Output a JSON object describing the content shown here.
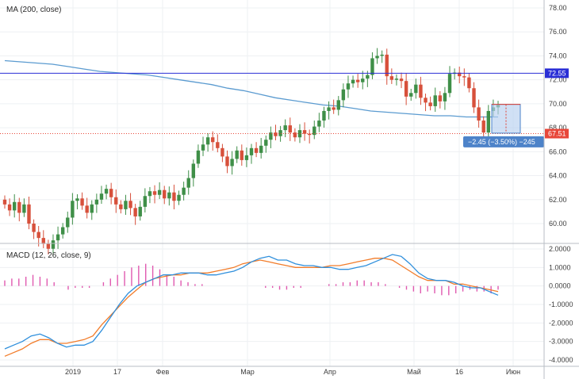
{
  "price_panel": {
    "indicator_label": "MA (200, close)",
    "y_ticks": [
      "78.00",
      "76.00",
      "74.00",
      "72.00",
      "70.00",
      "68.00",
      "66.00",
      "64.00",
      "62.00",
      "60.00"
    ],
    "level_blue": {
      "value": 72.55,
      "label": "72.55",
      "color": "#2a2fd6"
    },
    "level_red": {
      "value": 67.51,
      "label": "67.51",
      "color": "#e8473a"
    },
    "measure": {
      "label": "−2.45 (−3.50%) −245",
      "color": "#4d83c9"
    }
  },
  "macd_panel": {
    "indicator_label": "MACD (12, 26, close, 9)",
    "y_ticks": [
      "2.0000",
      "1.0000",
      "0.0000",
      "-1.0000",
      "-2.0000",
      "-3.0000",
      "-4.0000"
    ]
  },
  "x_axis": {
    "labels": [
      "2019",
      "17",
      "Фев",
      "Мар",
      "Апр",
      "Май",
      "16",
      "Июн"
    ]
  },
  "colors": {
    "up": "#3f8f48",
    "down": "#d7503b",
    "ma": "#5b9bd0",
    "macd": "#2f8fdc",
    "signal": "#f27c2a",
    "hist": "#e05ab0"
  },
  "chart_data": [
    {
      "type": "candlestick",
      "title": "",
      "close_approx": [
        61.6,
        61.1,
        61.8,
        60.9,
        61.6,
        60.0,
        59.3,
        58.8,
        58.3,
        57.9,
        58.6,
        59.1,
        59.7,
        60.5,
        61.9,
        62.1,
        61.5,
        60.9,
        61.6,
        62.0,
        62.5,
        62.9,
        62.2,
        61.6,
        61.2,
        61.9,
        61.3,
        60.6,
        61.4,
        62.3,
        62.7,
        62.4,
        62.8,
        62.1,
        62.6,
        61.9,
        62.4,
        63.0,
        63.8,
        65.0,
        66.1,
        66.6,
        67.2,
        66.8,
        66.3,
        65.6,
        64.8,
        65.4,
        66.1,
        65.3,
        65.7,
        66.3,
        65.9,
        66.5,
        67.0,
        67.6,
        67.3,
        67.8,
        68.2,
        67.6,
        67.2,
        67.8,
        67.5,
        67.4,
        68.1,
        68.6,
        69.4,
        69.7,
        69.5,
        70.3,
        71.2,
        71.7,
        72.0,
        71.8,
        72.1,
        72.4,
        73.8,
        74.0,
        74.1,
        72.3,
        72.0,
        72.1,
        71.9,
        70.6,
        70.9,
        71.6,
        70.5,
        70.1,
        69.8,
        70.7,
        70.2,
        70.9,
        72.5,
        72.6,
        72.3,
        72.2,
        71.3,
        69.7,
        68.6,
        67.6,
        69.4,
        69.7,
        69.9
      ],
      "ma200_approx": [
        73.6,
        73.5,
        73.4,
        73.3,
        73.1,
        72.9,
        72.7,
        72.6,
        72.5,
        72.4,
        72.2,
        72.0,
        71.8,
        71.6,
        71.3,
        71.1,
        70.8,
        70.5,
        70.3,
        70.1,
        69.9,
        69.8,
        69.6,
        69.4,
        69.3,
        69.2,
        69.1,
        69.0,
        69.0,
        68.9,
        68.9,
        68.9
      ],
      "series": [
        {
          "name": "MA (200, close)"
        }
      ],
      "ylim": [
        59,
        78.6
      ],
      "grid": true,
      "lines": [
        72.55,
        67.51
      ]
    },
    {
      "type": "line",
      "title": "MACD (12, 26, close, 9)",
      "macd_approx": [
        -3.4,
        -3.2,
        -3.0,
        -2.7,
        -2.6,
        -2.8,
        -3.1,
        -3.3,
        -3.2,
        -3.2,
        -3.0,
        -2.4,
        -1.7,
        -1.0,
        -0.4,
        0.0,
        0.2,
        0.4,
        0.6,
        0.6,
        0.7,
        0.7,
        0.7,
        0.6,
        0.6,
        0.7,
        0.8,
        1.0,
        1.3,
        1.5,
        1.6,
        1.4,
        1.4,
        1.2,
        1.1,
        1.1,
        1.0,
        1.0,
        0.9,
        0.9,
        1.0,
        1.1,
        1.3,
        1.5,
        1.7,
        1.6,
        1.2,
        0.7,
        0.4,
        0.3,
        0.3,
        0.2,
        0.0,
        -0.1,
        -0.1,
        -0.3,
        -0.5
      ],
      "signal_approx": [
        -3.8,
        -3.6,
        -3.4,
        -3.1,
        -2.9,
        -2.9,
        -3.1,
        -3.1,
        -3.0,
        -2.9,
        -2.7,
        -2.1,
        -1.6,
        -1.1,
        -0.6,
        -0.2,
        0.2,
        0.4,
        0.5,
        0.6,
        0.6,
        0.7,
        0.7,
        0.7,
        0.8,
        0.9,
        1.0,
        1.2,
        1.3,
        1.4,
        1.3,
        1.2,
        1.1,
        1.0,
        1.0,
        1.0,
        1.0,
        1.1,
        1.1,
        1.2,
        1.3,
        1.4,
        1.5,
        1.5,
        1.4,
        1.1,
        0.8,
        0.5,
        0.3,
        0.3,
        0.3,
        0.1,
        0.1,
        0.0,
        -0.1,
        -0.2,
        -0.3
      ],
      "hist_approx": [
        0.3,
        0.4,
        0.4,
        0.5,
        0.6,
        0.5,
        0.4,
        0.2,
        0.0,
        -0.2,
        -0.1,
        -0.1,
        -0.1,
        0.0,
        0.2,
        0.4,
        0.6,
        0.8,
        1.0,
        1.1,
        1.2,
        1.1,
        0.9,
        0.6,
        0.5,
        0.3,
        0.2,
        0.1,
        0.1,
        0.0,
        0.0,
        0.0,
        0.0,
        0.0,
        0.0,
        0.0,
        0.0,
        -0.1,
        -0.1,
        -0.2,
        -0.2,
        -0.1,
        -0.1,
        0.0,
        0.0,
        0.0,
        0.1,
        0.1,
        0.2,
        0.2,
        0.3,
        0.3,
        0.2,
        0.2,
        0.1,
        0.0,
        -0.1,
        -0.2,
        -0.3,
        -0.4,
        -0.3,
        -0.4,
        -0.5,
        -0.5,
        -0.4,
        -0.3,
        -0.2,
        -0.3,
        -0.3,
        -0.4,
        -0.2
      ],
      "series": [
        {
          "name": ""
        },
        {
          "name": ""
        }
      ],
      "ylim": [
        -4,
        2
      ],
      "grid": true
    }
  ]
}
